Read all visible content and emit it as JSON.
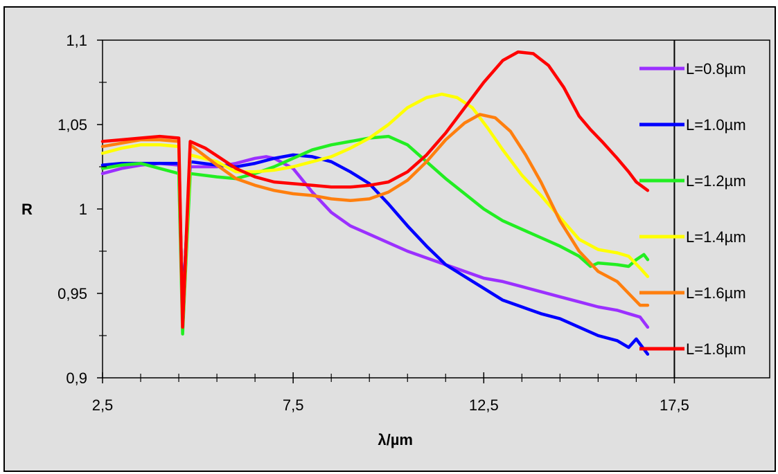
{
  "chart_data": {
    "type": "line",
    "title": "",
    "xlabel": "λ/µm",
    "ylabel": "R",
    "xlim": [
      2.5,
      20
    ],
    "ylim": [
      0.9,
      1.1
    ],
    "x_ticks": [
      "2,5",
      "7,5",
      "12,5",
      "17,5"
    ],
    "y_ticks": [
      "0,9",
      "0,95",
      "1",
      "1,05",
      "1,1"
    ],
    "grid": false,
    "legend_position": "right",
    "series": [
      {
        "name": "L=0.8µm",
        "color": "#9b30ff",
        "points": [
          [
            2.5,
            1.021
          ],
          [
            3.0,
            1.024
          ],
          [
            3.5,
            1.026
          ],
          [
            4.0,
            1.027
          ],
          [
            4.5,
            1.026
          ],
          [
            4.6,
            0.94
          ],
          [
            4.68,
            0.975
          ],
          [
            4.8,
            1.025
          ],
          [
            5.5,
            1.025
          ],
          [
            6.0,
            1.027
          ],
          [
            6.5,
            1.03
          ],
          [
            6.8,
            1.031
          ],
          [
            7.0,
            1.03
          ],
          [
            7.5,
            1.024
          ],
          [
            8.0,
            1.01
          ],
          [
            8.5,
            0.998
          ],
          [
            9.0,
            0.99
          ],
          [
            9.5,
            0.985
          ],
          [
            10.0,
            0.98
          ],
          [
            10.5,
            0.975
          ],
          [
            11.0,
            0.971
          ],
          [
            11.5,
            0.967
          ],
          [
            12.0,
            0.963
          ],
          [
            12.5,
            0.959
          ],
          [
            13.0,
            0.957
          ],
          [
            13.5,
            0.954
          ],
          [
            14.0,
            0.951
          ],
          [
            14.5,
            0.948
          ],
          [
            15.0,
            0.945
          ],
          [
            15.5,
            0.942
          ],
          [
            16.0,
            0.94
          ],
          [
            16.3,
            0.938
          ],
          [
            16.6,
            0.936
          ],
          [
            16.8,
            0.93
          ]
        ]
      },
      {
        "name": "L=1.0µm",
        "color": "#0000ff",
        "points": [
          [
            2.5,
            1.026
          ],
          [
            3.0,
            1.027
          ],
          [
            3.5,
            1.027
          ],
          [
            4.0,
            1.027
          ],
          [
            4.5,
            1.027
          ],
          [
            4.6,
            0.94
          ],
          [
            4.68,
            0.975
          ],
          [
            4.8,
            1.028
          ],
          [
            5.5,
            1.026
          ],
          [
            6.0,
            1.025
          ],
          [
            6.5,
            1.027
          ],
          [
            7.0,
            1.03
          ],
          [
            7.5,
            1.032
          ],
          [
            8.0,
            1.031
          ],
          [
            8.5,
            1.028
          ],
          [
            9.0,
            1.022
          ],
          [
            9.5,
            1.015
          ],
          [
            10.0,
            1.003
          ],
          [
            10.5,
            0.99
          ],
          [
            11.0,
            0.978
          ],
          [
            11.5,
            0.967
          ],
          [
            12.0,
            0.96
          ],
          [
            12.5,
            0.953
          ],
          [
            13.0,
            0.946
          ],
          [
            13.5,
            0.942
          ],
          [
            14.0,
            0.938
          ],
          [
            14.5,
            0.935
          ],
          [
            15.0,
            0.93
          ],
          [
            15.5,
            0.925
          ],
          [
            16.0,
            0.922
          ],
          [
            16.3,
            0.918
          ],
          [
            16.5,
            0.923
          ],
          [
            16.8,
            0.914
          ]
        ]
      },
      {
        "name": "L=1.2µm",
        "color": "#22ee22",
        "points": [
          [
            2.5,
            1.024
          ],
          [
            3.0,
            1.026
          ],
          [
            3.5,
            1.027
          ],
          [
            4.0,
            1.024
          ],
          [
            4.5,
            1.021
          ],
          [
            4.6,
            0.926
          ],
          [
            4.68,
            0.965
          ],
          [
            4.8,
            1.021
          ],
          [
            5.5,
            1.019
          ],
          [
            6.0,
            1.018
          ],
          [
            6.5,
            1.021
          ],
          [
            7.0,
            1.025
          ],
          [
            7.5,
            1.03
          ],
          [
            8.0,
            1.035
          ],
          [
            8.5,
            1.038
          ],
          [
            9.0,
            1.04
          ],
          [
            9.5,
            1.042
          ],
          [
            10.0,
            1.043
          ],
          [
            10.5,
            1.038
          ],
          [
            11.0,
            1.028
          ],
          [
            11.5,
            1.018
          ],
          [
            12.0,
            1.009
          ],
          [
            12.5,
            1.0
          ],
          [
            13.0,
            0.993
          ],
          [
            13.5,
            0.988
          ],
          [
            14.0,
            0.983
          ],
          [
            14.5,
            0.978
          ],
          [
            15.0,
            0.972
          ],
          [
            15.3,
            0.966
          ],
          [
            15.5,
            0.968
          ],
          [
            16.0,
            0.967
          ],
          [
            16.3,
            0.966
          ],
          [
            16.5,
            0.97
          ],
          [
            16.7,
            0.973
          ],
          [
            16.8,
            0.97
          ]
        ]
      },
      {
        "name": "L=1.4µm",
        "color": "#ffff00",
        "points": [
          [
            2.5,
            1.033
          ],
          [
            3.0,
            1.036
          ],
          [
            3.5,
            1.038
          ],
          [
            4.0,
            1.038
          ],
          [
            4.5,
            1.037
          ],
          [
            4.6,
            0.93
          ],
          [
            4.68,
            0.97
          ],
          [
            4.8,
            1.032
          ],
          [
            5.5,
            1.028
          ],
          [
            6.0,
            1.022
          ],
          [
            6.5,
            1.022
          ],
          [
            7.0,
            1.023
          ],
          [
            7.5,
            1.025
          ],
          [
            8.0,
            1.028
          ],
          [
            8.5,
            1.031
          ],
          [
            9.0,
            1.036
          ],
          [
            9.5,
            1.042
          ],
          [
            10.0,
            1.05
          ],
          [
            10.5,
            1.06
          ],
          [
            11.0,
            1.066
          ],
          [
            11.4,
            1.068
          ],
          [
            11.8,
            1.066
          ],
          [
            12.2,
            1.06
          ],
          [
            12.6,
            1.048
          ],
          [
            13.0,
            1.035
          ],
          [
            13.5,
            1.02
          ],
          [
            14.0,
            1.008
          ],
          [
            14.5,
            0.995
          ],
          [
            15.0,
            0.982
          ],
          [
            15.5,
            0.976
          ],
          [
            16.0,
            0.974
          ],
          [
            16.3,
            0.972
          ],
          [
            16.6,
            0.965
          ],
          [
            16.8,
            0.96
          ]
        ]
      },
      {
        "name": "L=1.6µm",
        "color": "#ff7f0e",
        "points": [
          [
            2.5,
            1.037
          ],
          [
            3.0,
            1.039
          ],
          [
            3.5,
            1.041
          ],
          [
            4.0,
            1.041
          ],
          [
            4.5,
            1.04
          ],
          [
            4.6,
            0.93
          ],
          [
            4.68,
            0.97
          ],
          [
            4.8,
            1.038
          ],
          [
            5.5,
            1.026
          ],
          [
            6.0,
            1.018
          ],
          [
            6.5,
            1.014
          ],
          [
            7.0,
            1.011
          ],
          [
            7.5,
            1.009
          ],
          [
            8.0,
            1.008
          ],
          [
            8.5,
            1.006
          ],
          [
            9.0,
            1.005
          ],
          [
            9.5,
            1.006
          ],
          [
            10.0,
            1.01
          ],
          [
            10.5,
            1.017
          ],
          [
            11.0,
            1.028
          ],
          [
            11.5,
            1.041
          ],
          [
            12.0,
            1.051
          ],
          [
            12.4,
            1.056
          ],
          [
            12.8,
            1.054
          ],
          [
            13.2,
            1.046
          ],
          [
            13.6,
            1.032
          ],
          [
            14.0,
            1.016
          ],
          [
            14.5,
            0.993
          ],
          [
            15.0,
            0.975
          ],
          [
            15.5,
            0.963
          ],
          [
            16.0,
            0.957
          ],
          [
            16.3,
            0.95
          ],
          [
            16.6,
            0.943
          ],
          [
            16.8,
            0.943
          ]
        ]
      },
      {
        "name": "L=1.8µm",
        "color": "#ff0000",
        "points": [
          [
            2.5,
            1.04
          ],
          [
            3.0,
            1.041
          ],
          [
            3.5,
            1.042
          ],
          [
            4.0,
            1.043
          ],
          [
            4.5,
            1.042
          ],
          [
            4.6,
            0.93
          ],
          [
            4.68,
            0.975
          ],
          [
            4.8,
            1.04
          ],
          [
            5.2,
            1.036
          ],
          [
            5.6,
            1.03
          ],
          [
            6.0,
            1.024
          ],
          [
            6.5,
            1.019
          ],
          [
            7.0,
            1.016
          ],
          [
            7.5,
            1.015
          ],
          [
            8.0,
            1.014
          ],
          [
            8.5,
            1.013
          ],
          [
            9.0,
            1.013
          ],
          [
            9.5,
            1.014
          ],
          [
            10.0,
            1.016
          ],
          [
            10.5,
            1.022
          ],
          [
            11.0,
            1.032
          ],
          [
            11.5,
            1.045
          ],
          [
            12.0,
            1.06
          ],
          [
            12.5,
            1.075
          ],
          [
            13.0,
            1.088
          ],
          [
            13.4,
            1.093
          ],
          [
            13.8,
            1.092
          ],
          [
            14.2,
            1.085
          ],
          [
            14.6,
            1.072
          ],
          [
            15.0,
            1.055
          ],
          [
            15.3,
            1.047
          ],
          [
            15.6,
            1.04
          ],
          [
            16.0,
            1.03
          ],
          [
            16.3,
            1.022
          ],
          [
            16.5,
            1.016
          ],
          [
            16.8,
            1.011
          ]
        ]
      }
    ]
  }
}
